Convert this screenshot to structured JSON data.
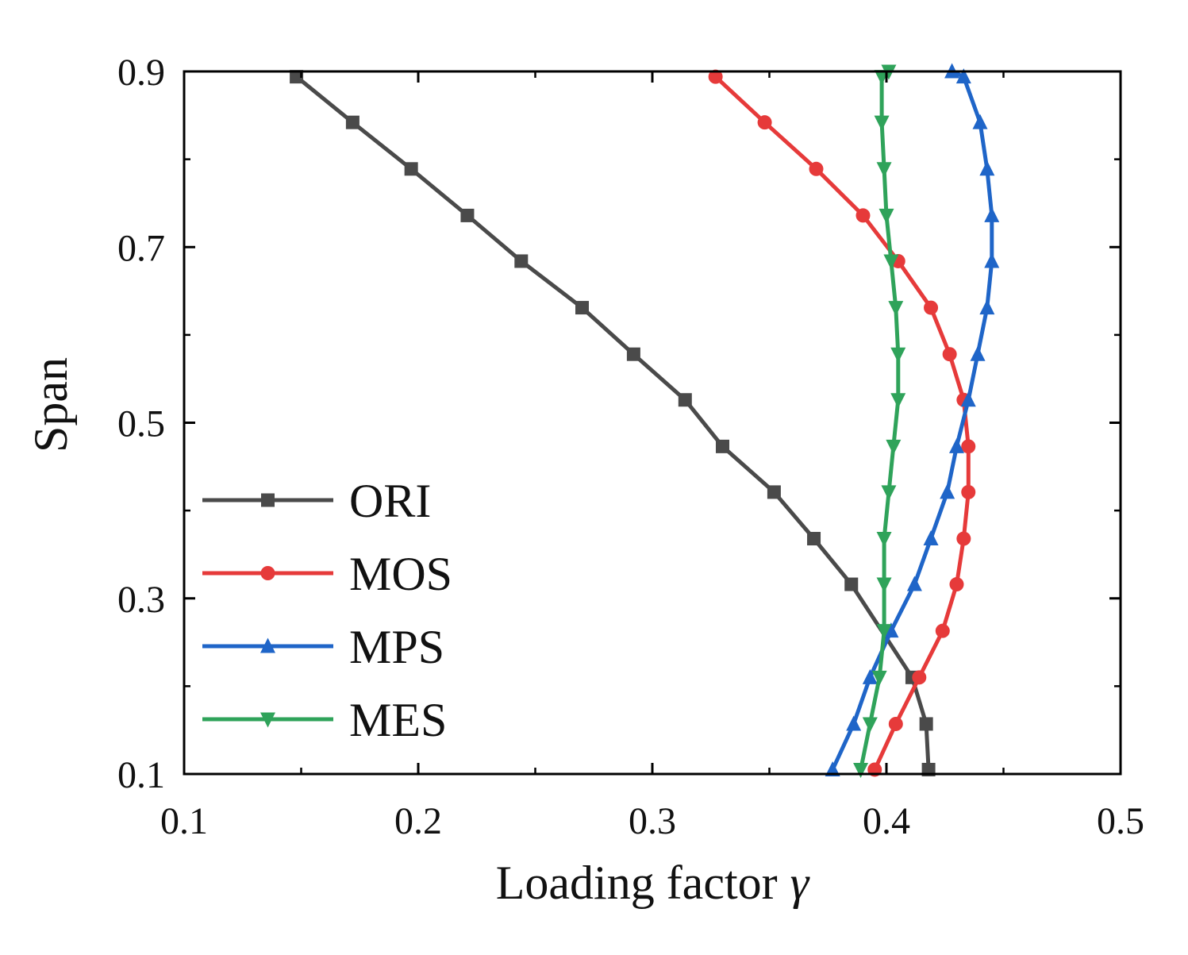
{
  "chart_data": {
    "type": "line",
    "xlabel": "Loading factor",
    "xlabel_symbol": "γ",
    "ylabel": "Span",
    "xlim": [
      0.1,
      0.5
    ],
    "ylim": [
      0.1,
      0.9
    ],
    "xticks": [
      0.1,
      0.2,
      0.3,
      0.4,
      0.5
    ],
    "xtick_labels": [
      "0.1",
      "0.2",
      "0.3",
      "0.4",
      "0.5"
    ],
    "yticks": [
      0.1,
      0.3,
      0.5,
      0.7,
      0.9
    ],
    "ytick_labels": [
      "0.1",
      "0.3",
      "0.5",
      "0.7",
      "0.9"
    ],
    "grid": false,
    "legend_position": "left-lower",
    "series": [
      {
        "name": "ORI",
        "color": "#4a4a4a",
        "marker": "square",
        "x": [
          0.418,
          0.417,
          0.411,
          0.385,
          0.369,
          0.352,
          0.33,
          0.314,
          0.292,
          0.27,
          0.244,
          0.221,
          0.197,
          0.172,
          0.148
        ],
        "y": [
          0.105,
          0.157,
          0.21,
          0.316,
          0.368,
          0.421,
          0.473,
          0.526,
          0.578,
          0.631,
          0.684,
          0.736,
          0.789,
          0.842,
          0.894
        ]
      },
      {
        "name": "MOS",
        "color": "#e63a3a",
        "marker": "circle",
        "x": [
          0.395,
          0.404,
          0.414,
          0.424,
          0.43,
          0.433,
          0.435,
          0.435,
          0.433,
          0.427,
          0.419,
          0.405,
          0.39,
          0.37,
          0.348,
          0.327
        ],
        "y": [
          0.105,
          0.157,
          0.21,
          0.263,
          0.316,
          0.368,
          0.421,
          0.473,
          0.526,
          0.578,
          0.631,
          0.684,
          0.736,
          0.789,
          0.842,
          0.894
        ]
      },
      {
        "name": "MPS",
        "color": "#1f65c8",
        "marker": "triangle-up",
        "x": [
          0.377,
          0.386,
          0.393,
          0.402,
          0.412,
          0.419,
          0.426,
          0.43,
          0.435,
          0.439,
          0.443,
          0.445,
          0.445,
          0.443,
          0.44,
          0.433,
          0.428
        ],
        "y": [
          0.105,
          0.157,
          0.21,
          0.263,
          0.316,
          0.368,
          0.421,
          0.473,
          0.526,
          0.578,
          0.631,
          0.684,
          0.736,
          0.789,
          0.842,
          0.894,
          0.9
        ]
      },
      {
        "name": "MES",
        "color": "#2fa35a",
        "marker": "triangle-down",
        "x": [
          0.389,
          0.393,
          0.397,
          0.399,
          0.399,
          0.399,
          0.401,
          0.403,
          0.405,
          0.405,
          0.404,
          0.402,
          0.4,
          0.399,
          0.398,
          0.398,
          0.401
        ],
        "y": [
          0.105,
          0.157,
          0.21,
          0.263,
          0.316,
          0.368,
          0.421,
          0.473,
          0.526,
          0.578,
          0.631,
          0.684,
          0.736,
          0.789,
          0.842,
          0.894,
          0.9
        ]
      }
    ]
  }
}
